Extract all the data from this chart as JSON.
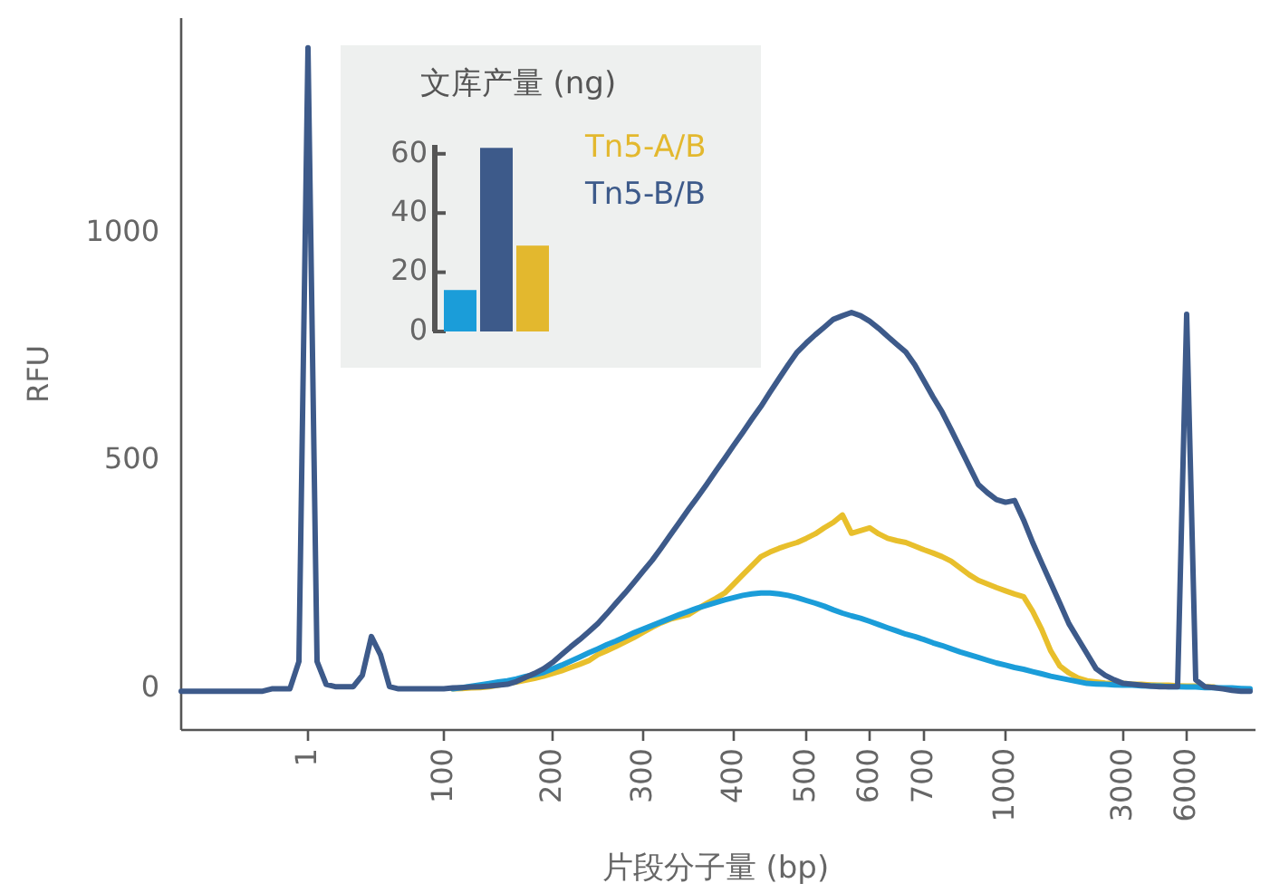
{
  "chart_data": [
    {
      "type": "line",
      "xlabel": "片段分子量 (bp)",
      "ylabel": "RFU",
      "ylim": [
        -90,
        1470
      ],
      "yticks": [
        0,
        500,
        1000
      ],
      "grid": false,
      "categories": [
        null,
        null,
        null,
        null,
        null,
        null,
        null,
        null,
        null,
        null,
        null,
        null,
        null,
        null,
        "1",
        null,
        null,
        null,
        null,
        null,
        null,
        null,
        null,
        null,
        null,
        null,
        null,
        null,
        null,
        "100",
        null,
        null,
        null,
        null,
        null,
        null,
        null,
        null,
        null,
        null,
        null,
        "200",
        null,
        null,
        null,
        null,
        null,
        null,
        null,
        null,
        null,
        "300",
        null,
        null,
        null,
        null,
        null,
        null,
        null,
        null,
        null,
        "400",
        null,
        null,
        null,
        null,
        null,
        null,
        null,
        "500",
        null,
        null,
        null,
        null,
        null,
        null,
        "600",
        null,
        null,
        null,
        null,
        null,
        "700",
        null,
        null,
        null,
        null,
        null,
        null,
        null,
        null,
        "1000",
        null,
        null,
        null,
        null,
        null,
        null,
        null,
        null,
        null,
        null,
        null,
        null,
        "3000",
        null,
        null,
        null,
        null,
        null,
        null,
        "6000",
        null,
        null,
        null,
        null,
        null,
        null,
        null
      ],
      "series": [
        {
          "color": "#e8bf2c",
          "values": [
            null,
            null,
            null,
            null,
            null,
            null,
            null,
            null,
            null,
            null,
            null,
            null,
            null,
            null,
            null,
            null,
            null,
            null,
            null,
            null,
            null,
            null,
            null,
            null,
            null,
            null,
            null,
            null,
            null,
            null,
            0,
            1,
            2,
            3,
            5,
            8,
            12,
            15,
            19,
            23,
            28,
            34,
            40,
            47,
            54,
            62,
            75,
            84,
            93,
            103,
            113,
            124,
            135,
            145,
            153,
            158,
            163,
            175,
            187,
            198,
            210,
            230,
            250,
            270,
            290,
            300,
            308,
            315,
            321,
            330,
            340,
            353,
            365,
            381,
            341,
            347,
            353,
            340,
            330,
            325,
            321,
            313,
            305,
            298,
            290,
            280,
            265,
            250,
            238,
            230,
            222,
            215,
            208,
            202,
            170,
            130,
            83,
            50,
            35,
            24,
            18,
            15,
            13,
            12,
            12,
            10,
            10,
            9,
            8,
            8,
            7,
            6,
            6,
            5,
            4,
            null,
            null,
            null,
            null
          ]
        },
        {
          "color": "#1b9dd9",
          "values": [
            null,
            null,
            null,
            null,
            null,
            null,
            null,
            null,
            null,
            null,
            null,
            null,
            null,
            null,
            null,
            null,
            null,
            null,
            null,
            null,
            null,
            null,
            null,
            null,
            null,
            null,
            null,
            null,
            null,
            null,
            0,
            3,
            6,
            9,
            12,
            15,
            18,
            22,
            27,
            31,
            36,
            44,
            52,
            61,
            70,
            79,
            88,
            97,
            105,
            114,
            123,
            131,
            139,
            147,
            155,
            163,
            170,
            177,
            183,
            189,
            195,
            200,
            205,
            208,
            210,
            210,
            208,
            205,
            200,
            194,
            188,
            181,
            173,
            166,
            160,
            155,
            148,
            141,
            134,
            127,
            120,
            115,
            108,
            101,
            95,
            88,
            81,
            75,
            69,
            63,
            57,
            52,
            47,
            43,
            38,
            33,
            28,
            24,
            20,
            16,
            12,
            11,
            10,
            9,
            8,
            8,
            7,
            6,
            6,
            5,
            5,
            4,
            4,
            3,
            3,
            2,
            2,
            1,
            0
          ]
        },
        {
          "color": "#3d5a8a",
          "values": [
            -5,
            -5,
            -5,
            -5,
            -5,
            -5,
            -5,
            -5,
            -5,
            -5,
            0,
            0,
            0,
            60,
            1405,
            60,
            10,
            5,
            5,
            5,
            30,
            115,
            75,
            5,
            0,
            0,
            0,
            0,
            0,
            0,
            2,
            3,
            4,
            5,
            6,
            8,
            10,
            16,
            25,
            34,
            44,
            58,
            75,
            92,
            108,
            125,
            143,
            165,
            188,
            210,
            234,
            258,
            282,
            309,
            337,
            365,
            393,
            420,
            448,
            477,
            505,
            534,
            562,
            591,
            619,
            650,
            680,
            710,
            738,
            758,
            776,
            793,
            810,
            818,
            825,
            818,
            806,
            790,
            772,
            755,
            738,
            710,
            675,
            640,
            607,
            568,
            528,
            488,
            448,
            430,
            415,
            409,
            413,
            370,
            321,
            276,
            232,
            188,
            143,
            110,
            77,
            44,
            30,
            20,
            12,
            10,
            8,
            6,
            5,
            5,
            5,
            821,
            20,
            5,
            3,
            0,
            -3,
            -5,
            -5
          ]
        }
      ]
    },
    {
      "type": "bar",
      "title": "文库产量 (ng)",
      "categories": [
        null
      ],
      "ylim": [
        0,
        63
      ],
      "yticks": [
        0,
        20,
        40,
        60
      ],
      "tick_labels": "y",
      "grid": false,
      "legend": "right",
      "series": [
        {
          "color": "#1b9dd9",
          "values": [
            14
          ]
        },
        {
          "name": "Tn5-B/B",
          "color": "#3d5a8a",
          "values": [
            62
          ]
        },
        {
          "name": "Tn5-A/B",
          "color": "#e3b82e",
          "values": [
            29
          ]
        }
      ]
    }
  ]
}
